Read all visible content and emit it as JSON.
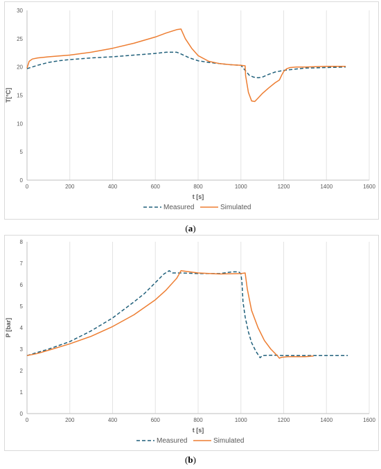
{
  "figure": {
    "caption_a": "a",
    "caption_b": "b"
  },
  "colors": {
    "measured": "#1f5f7a",
    "simulated": "#ed7d31",
    "grid": "#e3e3e3",
    "axis": "#bfbfbf",
    "text": "#595959"
  },
  "chart_data": [
    {
      "type": "line",
      "title": "",
      "xlabel": "t [s]",
      "ylabel": "T[°C]",
      "xlim": [
        0,
        1600
      ],
      "ylim": [
        0,
        30
      ],
      "xticks": [
        "0",
        "200",
        "400",
        "600",
        "800",
        "1000",
        "1200",
        "1400",
        "1600"
      ],
      "yticks": [
        "0",
        "5",
        "10",
        "15",
        "20",
        "25",
        "30"
      ],
      "grid": "vertical",
      "legend": "bottom",
      "series": [
        {
          "name": "Measured",
          "style": "dashed",
          "x": [
            0,
            50,
            100,
            150,
            200,
            300,
            400,
            500,
            600,
            650,
            700,
            720,
            760,
            800,
            850,
            900,
            950,
            1000,
            1020,
            1040,
            1060,
            1080,
            1100,
            1130,
            1160,
            1200,
            1250,
            1300,
            1400,
            1490
          ],
          "y": [
            19.7,
            20.3,
            20.8,
            21.1,
            21.3,
            21.6,
            21.8,
            22.1,
            22.4,
            22.6,
            22.6,
            22.3,
            21.6,
            21.1,
            20.8,
            20.6,
            20.4,
            20.3,
            19.4,
            18.5,
            18.2,
            18.1,
            18.2,
            18.7,
            19.1,
            19.4,
            19.6,
            19.8,
            19.9,
            20.0
          ]
        },
        {
          "name": "Simulated",
          "style": "solid",
          "x": [
            0,
            10,
            25,
            50,
            100,
            200,
            300,
            400,
            500,
            600,
            650,
            700,
            720,
            740,
            770,
            800,
            850,
            900,
            950,
            1000,
            1020,
            1022,
            1035,
            1050,
            1065,
            1080,
            1100,
            1130,
            1160,
            1180,
            1190,
            1200,
            1215,
            1230,
            1260,
            1300,
            1400,
            1490
          ],
          "y": [
            19.8,
            21.0,
            21.4,
            21.6,
            21.8,
            22.1,
            22.6,
            23.3,
            24.2,
            25.3,
            26.0,
            26.6,
            26.7,
            25.0,
            23.3,
            22.0,
            21.0,
            20.6,
            20.4,
            20.3,
            20.2,
            18.5,
            15.5,
            14.0,
            13.9,
            14.5,
            15.3,
            16.3,
            17.2,
            17.7,
            18.5,
            19.2,
            19.7,
            19.9,
            20.0,
            20.0,
            20.1,
            20.1
          ]
        }
      ]
    },
    {
      "type": "line",
      "title": "",
      "xlabel": "t [s]",
      "ylabel": "P [bar]",
      "xlim": [
        0,
        1600
      ],
      "ylim": [
        0,
        8
      ],
      "xticks": [
        "0",
        "200",
        "400",
        "600",
        "800",
        "1000",
        "1200",
        "1400",
        "1600"
      ],
      "yticks": [
        "0",
        "1",
        "2",
        "3",
        "4",
        "5",
        "6",
        "7",
        "8"
      ],
      "grid": "vertical",
      "legend": "bottom",
      "series": [
        {
          "name": "Measured",
          "style": "dashed",
          "x": [
            0,
            50,
            100,
            200,
            300,
            400,
            500,
            550,
            600,
            640,
            665,
            680,
            720,
            800,
            900,
            960,
            990,
            1000,
            1005,
            1010,
            1020,
            1035,
            1050,
            1070,
            1090,
            1100,
            1150,
            1200,
            1300,
            1400,
            1500
          ],
          "y": [
            2.7,
            2.85,
            3.0,
            3.35,
            3.85,
            4.45,
            5.2,
            5.6,
            6.1,
            6.5,
            6.65,
            6.55,
            6.55,
            6.52,
            6.52,
            6.6,
            6.6,
            6.5,
            6.1,
            5.2,
            4.5,
            3.8,
            3.3,
            2.9,
            2.6,
            2.7,
            2.72,
            2.7,
            2.7,
            2.7,
            2.7
          ]
        },
        {
          "name": "Simulated",
          "style": "solid",
          "x": [
            0,
            50,
            100,
            200,
            300,
            400,
            500,
            600,
            650,
            700,
            720,
            760,
            800,
            900,
            1000,
            1020,
            1030,
            1050,
            1080,
            1110,
            1140,
            1170,
            1180,
            1190,
            1220,
            1260,
            1300,
            1340
          ],
          "y": [
            2.7,
            2.8,
            2.95,
            3.25,
            3.6,
            4.05,
            4.6,
            5.3,
            5.75,
            6.3,
            6.65,
            6.6,
            6.55,
            6.5,
            6.52,
            6.55,
            5.8,
            4.8,
            4.0,
            3.4,
            3.0,
            2.7,
            2.58,
            2.62,
            2.65,
            2.65,
            2.65,
            2.68
          ]
        }
      ]
    }
  ]
}
